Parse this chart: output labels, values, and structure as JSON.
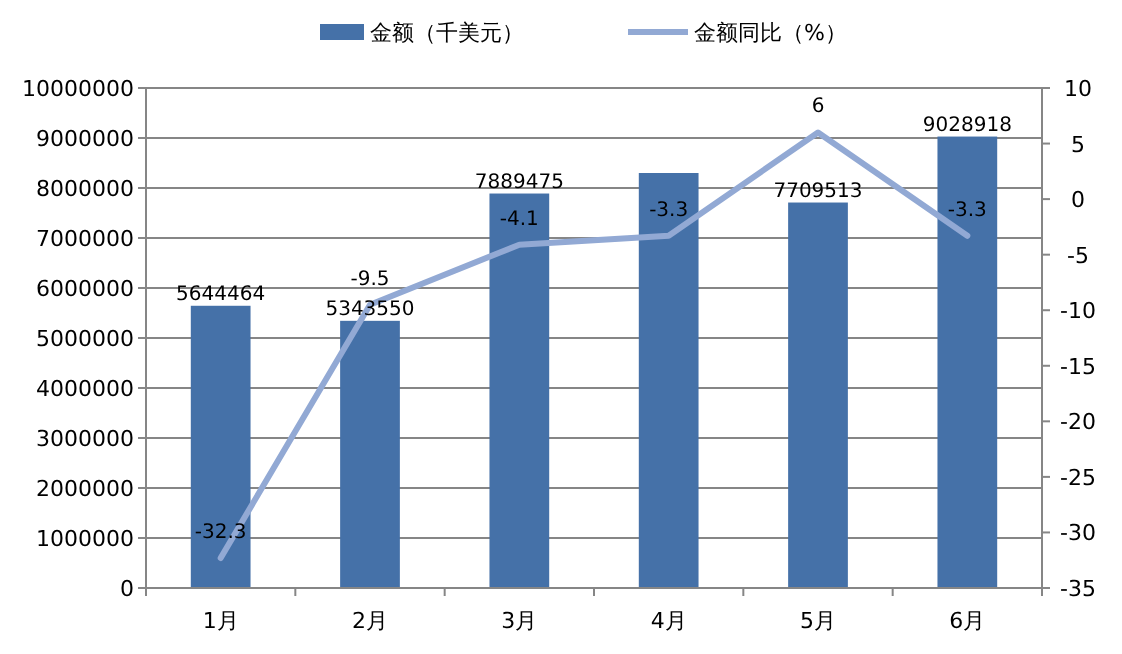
{
  "chart_data": {
    "type": "bar",
    "categories": [
      "1月",
      "2月",
      "3月",
      "4月",
      "5月",
      "6月"
    ],
    "series": [
      {
        "name": "金额（千美元）",
        "color": "#4571a8",
        "values": [
          5644464,
          5343550,
          7889475,
          8300000,
          7709513,
          9028918
        ],
        "value_labels": [
          "5644464",
          "5343550",
          "7889475",
          null,
          "7709513",
          "9028918"
        ]
      },
      {
        "name": "金额同比（%）",
        "type": "line",
        "axis": "y2",
        "color": "#92a9d4",
        "values": [
          -32.3,
          -9.5,
          -4.1,
          -3.3,
          6,
          -3.3
        ],
        "value_labels": [
          "-32.3",
          "-9.5",
          "-4.1",
          "-3.3",
          "6",
          "-3.3"
        ]
      }
    ],
    "ylim": [
      0,
      10000000
    ],
    "yticks": [
      0,
      1000000,
      2000000,
      3000000,
      4000000,
      5000000,
      6000000,
      7000000,
      8000000,
      9000000,
      10000000
    ],
    "y2lim": [
      -35,
      10
    ],
    "y2ticks": [
      -35,
      -30,
      -25,
      -20,
      -15,
      -10,
      -5,
      0,
      5,
      10
    ],
    "grid": "y",
    "legend": "top",
    "marker": "none",
    "line_style": "solid"
  }
}
